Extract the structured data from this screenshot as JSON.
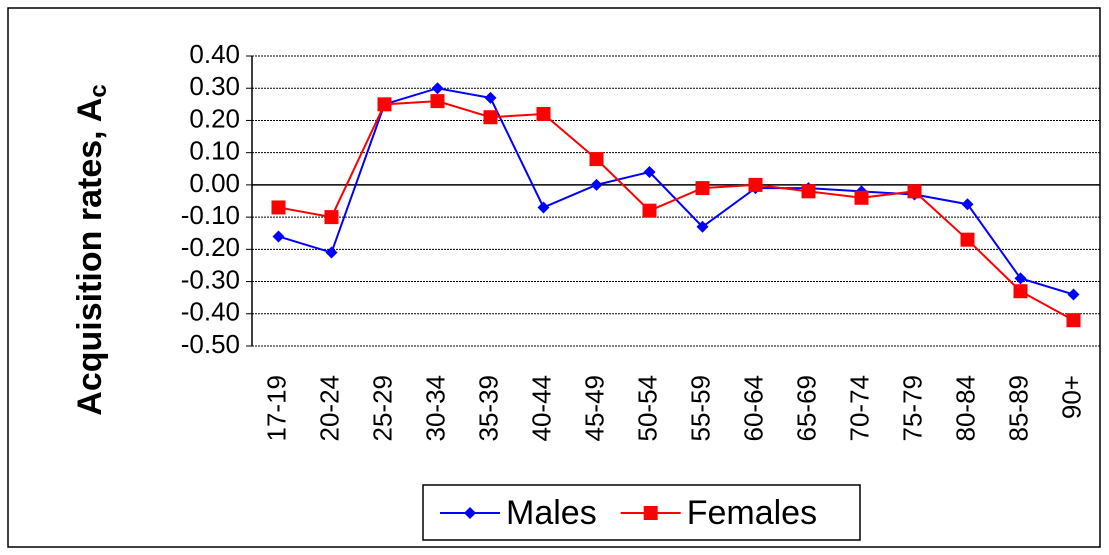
{
  "chart_data": {
    "type": "line",
    "y_label": "Acquisition rates, A",
    "y_label_subscript": "c",
    "categories": [
      "17-19",
      "20-24",
      "25-29",
      "30-34",
      "35-39",
      "40-44",
      "45-49",
      "50-54",
      "55-59",
      "60-64",
      "65-69",
      "70-74",
      "75-79",
      "80-84",
      "85-89",
      "90+"
    ],
    "series": [
      {
        "name": "Males",
        "color": "#0000ff",
        "marker": "diamond",
        "values": [
          -0.16,
          -0.21,
          0.25,
          0.3,
          0.27,
          -0.07,
          0.0,
          0.04,
          -0.13,
          -0.01,
          -0.01,
          -0.02,
          -0.03,
          -0.06,
          -0.29,
          -0.34
        ]
      },
      {
        "name": "Females",
        "color": "#ff0000",
        "marker": "square",
        "values": [
          -0.07,
          -0.1,
          0.25,
          0.26,
          0.21,
          0.22,
          0.08,
          -0.08,
          -0.01,
          0.0,
          -0.02,
          -0.04,
          -0.02,
          -0.17,
          -0.33,
          -0.42
        ]
      }
    ],
    "ylim": [
      -0.5,
      0.4
    ],
    "yticks": [
      {
        "value": 0.4,
        "label": "0.40"
      },
      {
        "value": 0.3,
        "label": "0.30"
      },
      {
        "value": 0.2,
        "label": "0.20"
      },
      {
        "value": 0.1,
        "label": "0.10"
      },
      {
        "value": 0,
        "label": "0.00"
      },
      {
        "value": -0.1,
        "label": "-0.10"
      },
      {
        "value": -0.2,
        "label": "-0.20"
      },
      {
        "value": -0.3,
        "label": "-0.30"
      },
      {
        "value": -0.4,
        "label": "-0.40"
      },
      {
        "value": -0.5,
        "label": "-0.50"
      }
    ],
    "grid": true,
    "legend": "bottom"
  }
}
